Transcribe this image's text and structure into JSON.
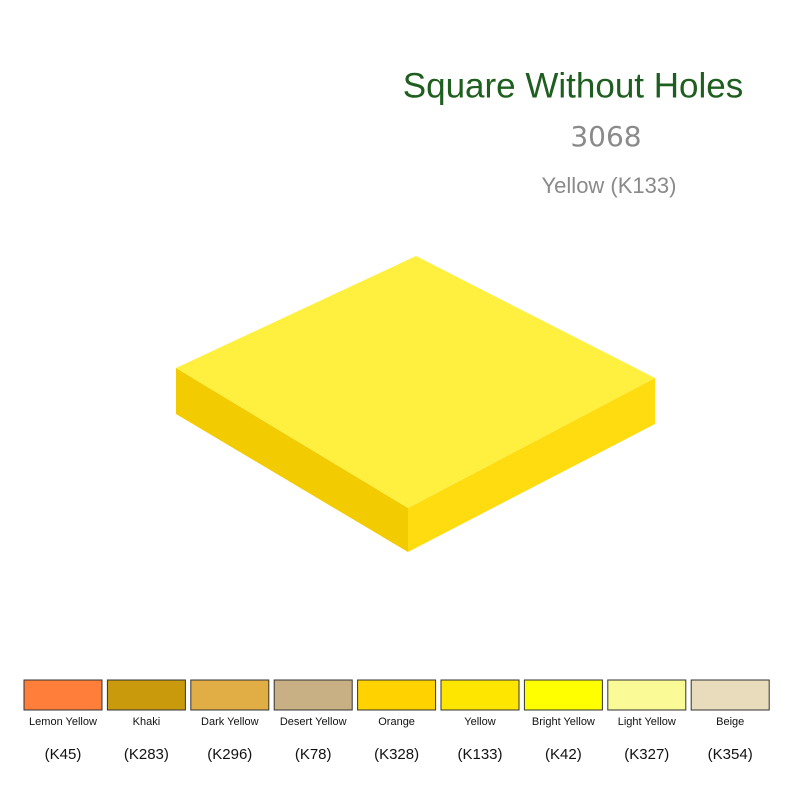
{
  "header": {
    "title": "Square Without Holes",
    "part_number": "3068",
    "color_name": "Yellow (K133)"
  },
  "swatches": [
    {
      "name": "Lemon Yellow",
      "code": "(K45)",
      "color": "#ff7f3a"
    },
    {
      "name": "Khaki",
      "code": "(K283)",
      "color": "#c99a0c"
    },
    {
      "name": "Dark Yellow",
      "code": "(K296)",
      "color": "#e1ad45"
    },
    {
      "name": "Desert Yellow",
      "code": "(K78)",
      "color": "#c8b084"
    },
    {
      "name": "Orange",
      "code": "(K328)",
      "color": "#ffd200"
    },
    {
      "name": "Yellow",
      "code": "(K133)",
      "color": "#ffe600"
    },
    {
      "name": "Bright Yellow",
      "code": "(K42)",
      "color": "#ffff00"
    },
    {
      "name": "Light Yellow",
      "code": "(K327)",
      "color": "#fafa96"
    },
    {
      "name": "Beige",
      "code": "(K354)",
      "color": "#e8dcbc"
    }
  ]
}
